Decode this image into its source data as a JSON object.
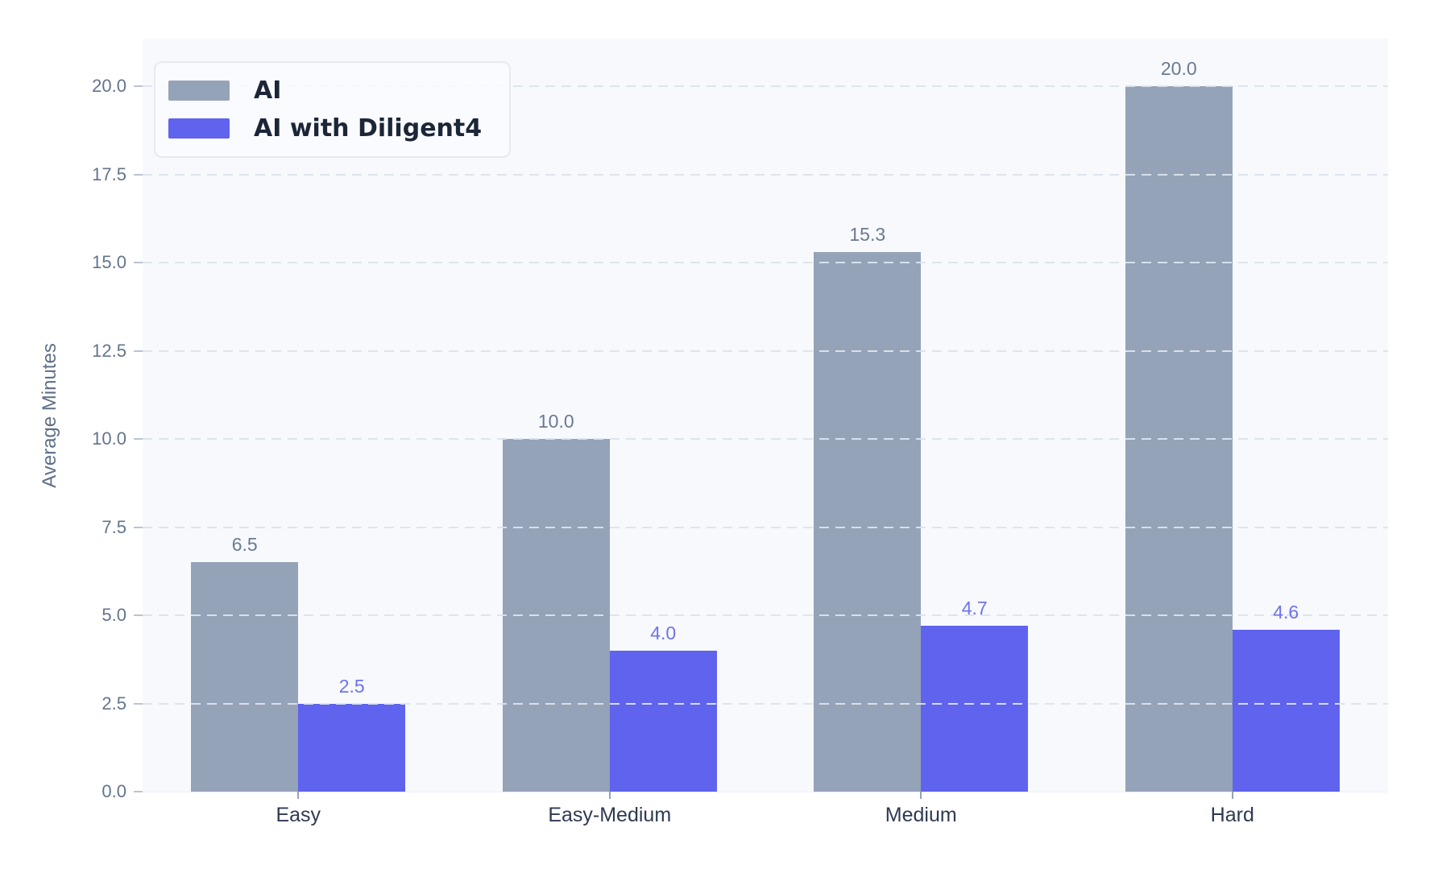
{
  "chart_data": {
    "type": "bar",
    "categories": [
      "Easy",
      "Easy-Medium",
      "Medium",
      "Hard"
    ],
    "series": [
      {
        "name": "AI",
        "color": "#94a3b8",
        "label_color": "#6b7a90",
        "values": [
          6.5,
          10.0,
          15.3,
          20.0
        ]
      },
      {
        "name": "AI with Diligent4",
        "color": "#5f63ee",
        "label_color": "#6e72f0",
        "values": [
          2.5,
          4.0,
          4.7,
          4.6
        ]
      }
    ],
    "title": "",
    "xlabel": "",
    "ylabel": "Average Minutes",
    "ylim": [
      0,
      21.35
    ],
    "yticks": [
      "0.0",
      "2.5",
      "5.0",
      "7.5",
      "10.0",
      "12.5",
      "15.0",
      "17.5",
      "20.0"
    ],
    "grid": "horizontal-dashed",
    "grid_on_top_of_bars": true,
    "legend_position": "top-left",
    "value_labels": true,
    "plot_background": "#f7f9fc",
    "figure_background": "#ffffff"
  }
}
